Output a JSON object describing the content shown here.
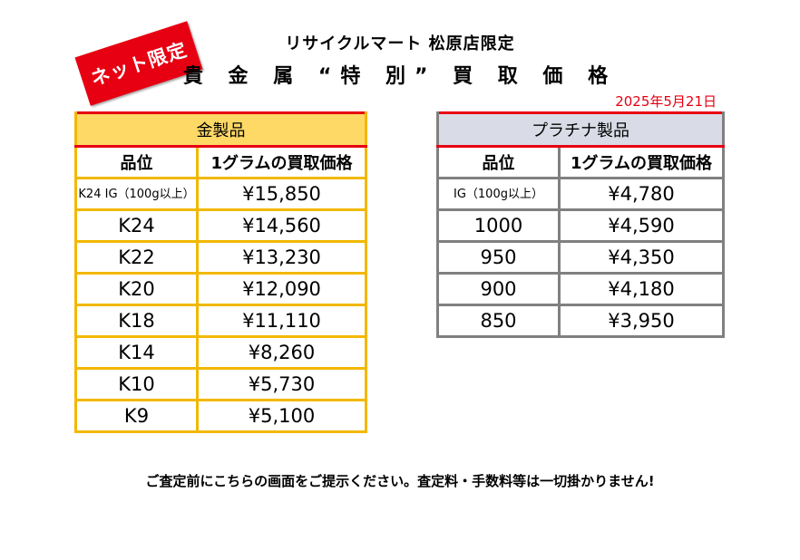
{
  "badge": "ネット限定",
  "store": "リサイクルマート 松原店限定",
  "title": "貴 金 属 “特 別” 買 取 価 格",
  "date": "2025年5月21日",
  "gold": {
    "heading": "金製品",
    "col_grade": "品位",
    "col_price": "1グラムの買取価格",
    "rows": [
      {
        "grade": "K24 IG（100g以上）",
        "price": "¥15,850"
      },
      {
        "grade": "K24",
        "price": "¥14,560"
      },
      {
        "grade": "K22",
        "price": "¥13,230"
      },
      {
        "grade": "K20",
        "price": "¥12,090"
      },
      {
        "grade": "K18",
        "price": "¥11,110"
      },
      {
        "grade": "K14",
        "price": "¥8,260"
      },
      {
        "grade": "K10",
        "price": "¥5,730"
      },
      {
        "grade": "K9",
        "price": "¥5,100"
      }
    ]
  },
  "platinum": {
    "heading": "プラチナ製品",
    "col_grade": "品位",
    "col_price": "1グラムの買取価格",
    "rows": [
      {
        "grade": "IG（100g以上）",
        "price": "¥4,780"
      },
      {
        "grade": "1000",
        "price": "¥4,590"
      },
      {
        "grade": "950",
        "price": "¥4,350"
      },
      {
        "grade": "900",
        "price": "¥4,180"
      },
      {
        "grade": "850",
        "price": "¥3,950"
      }
    ]
  },
  "footer": "ご査定前にこちらの画面をご提示ください。査定料・手数料等は一切掛かりません!"
}
